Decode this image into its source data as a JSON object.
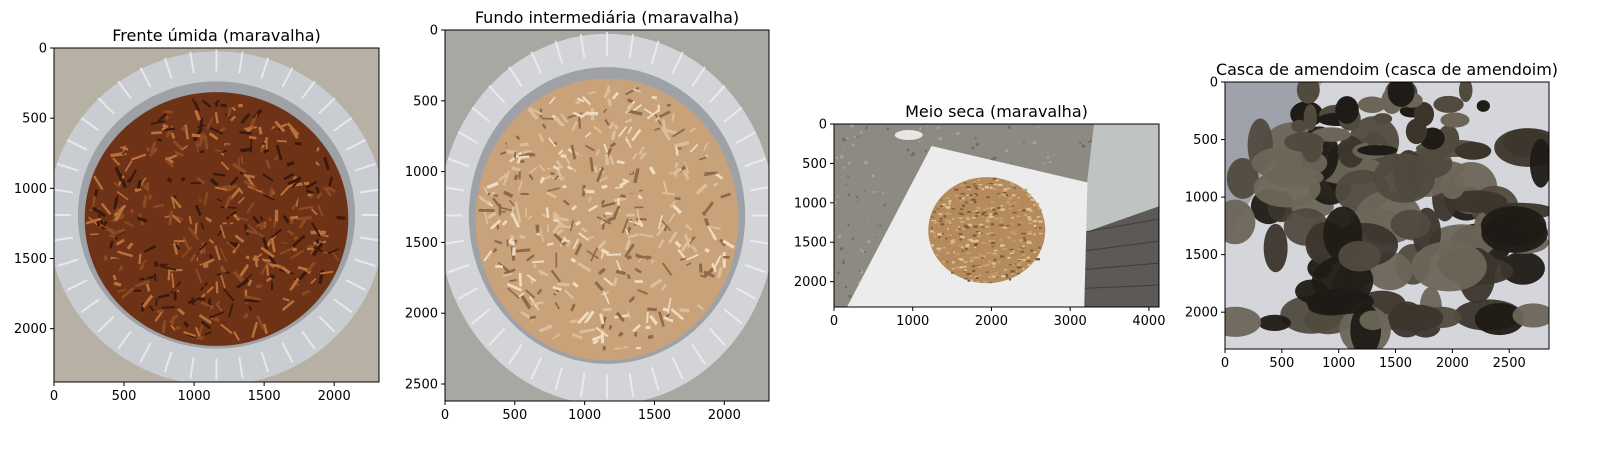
{
  "chart_data": [
    {
      "type": "image",
      "title": "Frente úmida (maravalha)",
      "xlim": [
        0,
        2320
      ],
      "ylim": [
        2380,
        0
      ],
      "xticks": [
        0,
        500,
        1000,
        1500,
        2000
      ],
      "yticks": [
        0,
        500,
        1000,
        1500,
        2000
      ],
      "image": "aluminum tray with dark reddish-brown moist wood shavings",
      "colors": {
        "base": "#6e3217",
        "mid": "#8c4a22",
        "light": "#b9703a",
        "dark": "#3a1a0c",
        "tray": "#c9ccd0",
        "bg": "#b7b0a4"
      }
    },
    {
      "type": "image",
      "title": "Fundo intermediária (maravalha)",
      "xlim": [
        0,
        2320
      ],
      "ylim": [
        2620,
        0
      ],
      "xticks": [
        0,
        500,
        1000,
        1500,
        2000
      ],
      "yticks": [
        0,
        500,
        1000,
        1500,
        2000,
        2500
      ],
      "image": "aluminum tray with light tan wood shavings",
      "colors": {
        "base": "#c9a27a",
        "mid": "#dcbf9a",
        "light": "#efdcc0",
        "dark": "#8e6a4a",
        "tray": "#d2d4d8",
        "bg": "#a9a7a2"
      }
    },
    {
      "type": "image",
      "title": "Meio seca (maravalha)",
      "xlim": [
        0,
        4128
      ],
      "ylim": [
        2322,
        0
      ],
      "xticks": [
        0,
        1000,
        2000,
        3000,
        4000
      ],
      "yticks": [
        0,
        500,
        1000,
        1500,
        2000
      ],
      "image": "pile of tan dry shavings on a white board over a granite counter",
      "colors": {
        "base": "#b58a5c",
        "mid": "#c9a274",
        "light": "#e0c49a",
        "dark": "#7f5b3a",
        "board": "#ececec",
        "bg": "#8d8a83",
        "wall": "#bfc3c2",
        "floor": "#5c5956"
      }
    },
    {
      "type": "image",
      "title": "Casca de amendoim (casca de amendoim)",
      "xlim": [
        0,
        2850
      ],
      "ylim": [
        2320,
        0
      ],
      "xticks": [
        0,
        500,
        1000,
        1500,
        2000,
        2500
      ],
      "yticks": [
        0,
        500,
        1000,
        1500,
        2000
      ],
      "image": "dark clumps of peanut husk substrate on a white/grey surface",
      "colors": {
        "base": "#3b352c",
        "mid": "#514a3e",
        "light": "#6d6658",
        "dark": "#1f1b16",
        "bg": "#b9bbc3"
      }
    }
  ]
}
